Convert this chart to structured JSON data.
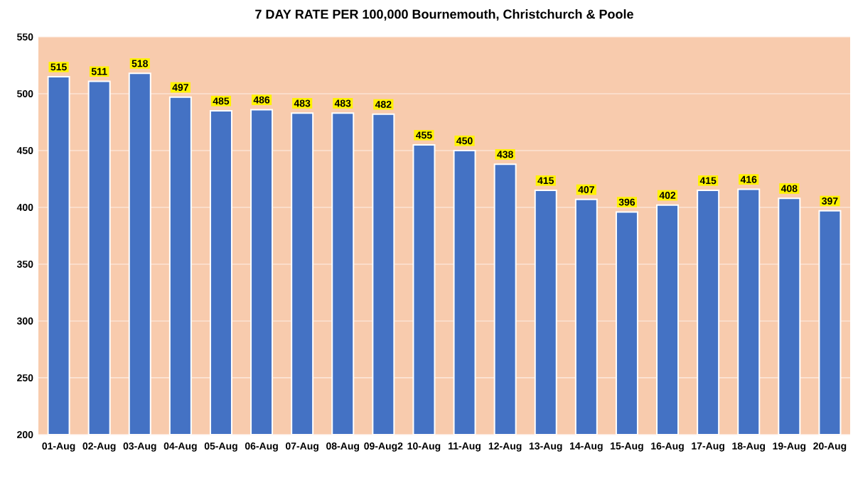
{
  "chart_data": {
    "type": "bar",
    "title": "7 DAY RATE PER 100,000 Bournemouth, Christchurch & Poole",
    "categories": [
      "01-Aug",
      "02-Aug",
      "03-Aug",
      "04-Aug",
      "05-Aug",
      "06-Aug",
      "07-Aug",
      "08-Aug",
      "09-Aug2",
      "10-Aug",
      "11-Aug",
      "12-Aug",
      "13-Aug",
      "14-Aug",
      "15-Aug",
      "16-Aug",
      "17-Aug",
      "18-Aug",
      "19-Aug",
      "20-Aug"
    ],
    "values": [
      515,
      511,
      518,
      497,
      485,
      486,
      483,
      483,
      482,
      455,
      450,
      438,
      415,
      407,
      396,
      402,
      415,
      416,
      408,
      397
    ],
    "color": "#4472c4",
    "ylim": [
      200,
      550
    ],
    "yticks": [
      200,
      250,
      300,
      350,
      400,
      450,
      500,
      550
    ],
    "grid": "y",
    "data_labels": true
  }
}
